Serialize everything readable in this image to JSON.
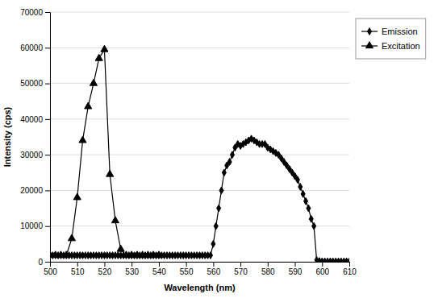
{
  "chart_data": {
    "type": "line",
    "title": "",
    "xlabel": "Wavelength (nm)",
    "ylabel": "Intensity (cps)",
    "xlim": [
      500,
      610
    ],
    "ylim": [
      0,
      70000
    ],
    "xticks": [
      500,
      510,
      520,
      530,
      540,
      550,
      560,
      570,
      580,
      590,
      600,
      610
    ],
    "yticks": [
      0,
      10000,
      20000,
      30000,
      40000,
      50000,
      60000,
      70000
    ],
    "grid": "y",
    "legend": "right",
    "series": [
      {
        "name": "Emission",
        "color": "#000000",
        "marker": "diamond",
        "x": [
          500,
          501,
          502,
          503,
          504,
          505,
          506,
          507,
          508,
          509,
          510,
          511,
          512,
          513,
          514,
          515,
          516,
          517,
          518,
          519,
          520,
          521,
          522,
          523,
          524,
          525,
          526,
          527,
          528,
          529,
          530,
          531,
          532,
          533,
          534,
          535,
          536,
          537,
          538,
          539,
          540,
          541,
          542,
          543,
          544,
          545,
          546,
          547,
          548,
          549,
          550,
          551,
          552,
          553,
          554,
          555,
          556,
          557,
          558,
          559,
          560,
          561,
          562,
          563,
          564,
          565,
          566,
          567,
          568,
          569,
          570,
          571,
          572,
          573,
          574,
          575,
          576,
          577,
          578,
          579,
          580,
          581,
          582,
          583,
          584,
          585,
          586,
          587,
          588,
          589,
          590,
          591,
          592,
          593,
          594,
          595,
          596,
          597,
          598,
          599,
          600,
          601,
          602,
          603,
          604,
          605,
          606,
          607,
          608,
          609,
          610
        ],
        "values": [
          1800,
          1800,
          1800,
          1800,
          1800,
          1800,
          1800,
          1800,
          1800,
          1800,
          1800,
          1800,
          1800,
          1800,
          1800,
          1800,
          1800,
          1800,
          1800,
          1800,
          1800,
          1800,
          1800,
          1800,
          1800,
          1800,
          1800,
          1800,
          1800,
          1800,
          1800,
          1800,
          1800,
          1800,
          1800,
          1800,
          1800,
          1800,
          1800,
          1800,
          1800,
          1800,
          1800,
          1800,
          1800,
          1800,
          1800,
          1800,
          1800,
          1800,
          1800,
          1800,
          1800,
          1800,
          1800,
          1800,
          1800,
          1800,
          1800,
          1800,
          5000,
          10000,
          15000,
          20000,
          25000,
          27000,
          28000,
          30000,
          32000,
          33000,
          32500,
          33000,
          33500,
          34000,
          34500,
          34000,
          33500,
          33000,
          33000,
          33000,
          32000,
          31500,
          31000,
          30500,
          30000,
          29000,
          28000,
          27000,
          26000,
          25000,
          24000,
          23000,
          21000,
          19000,
          17000,
          15000,
          12000,
          10000,
          500,
          200,
          100,
          100,
          100,
          100,
          100,
          100,
          100,
          100,
          100,
          100,
          100
        ]
      },
      {
        "name": "Excitation",
        "color": "#000000",
        "marker": "triangle",
        "x": [
          500,
          502,
          504,
          506,
          508,
          510,
          512,
          514,
          516,
          518,
          520,
          522,
          524,
          526,
          528,
          530,
          532,
          534,
          536,
          538,
          540
        ],
        "values": [
          1800,
          1800,
          1800,
          1800,
          6500,
          18000,
          34000,
          43500,
          50000,
          57000,
          59500,
          24500,
          11500,
          3500,
          1800,
          1800,
          1800,
          1800,
          1800,
          1800,
          1800
        ]
      }
    ]
  }
}
